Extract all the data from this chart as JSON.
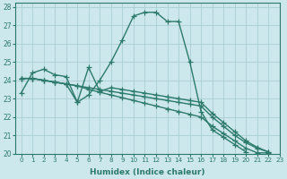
{
  "xlabel": "Humidex (Indice chaleur)",
  "xlim": [
    -0.5,
    23
  ],
  "ylim": [
    20,
    28.2
  ],
  "yticks": [
    20,
    21,
    22,
    23,
    24,
    25,
    26,
    27,
    28
  ],
  "xticks": [
    0,
    1,
    2,
    3,
    4,
    5,
    6,
    7,
    8,
    9,
    10,
    11,
    12,
    13,
    14,
    15,
    16,
    17,
    18,
    19,
    20,
    21,
    22,
    23
  ],
  "bg_color": "#cce8ec",
  "grid_color": "#aacdd4",
  "line_color": "#2d7a6c",
  "curve_main": {
    "x": [
      0,
      1,
      2,
      3,
      4,
      5,
      6,
      7,
      8,
      9,
      10,
      11,
      12,
      13,
      14,
      15,
      16,
      17,
      18,
      19,
      20,
      21,
      22,
      23
    ],
    "y": [
      23.3,
      24.4,
      24.6,
      24.3,
      24.2,
      22.8,
      23.2,
      24.0,
      25.0,
      26.2,
      27.5,
      27.7,
      27.7,
      27.2,
      27.2,
      25.0,
      22.3,
      21.3,
      20.9,
      20.5,
      20.1,
      null,
      null,
      null
    ]
  },
  "curve_line1": {
    "x": [
      0,
      1,
      2,
      3,
      4,
      5,
      6,
      7,
      8,
      9,
      10,
      11,
      12,
      13,
      14,
      15,
      16,
      17,
      18,
      19,
      20,
      21,
      22,
      23
    ],
    "y": [
      24.1,
      24.1,
      24.0,
      23.9,
      23.8,
      23.7,
      23.6,
      23.5,
      23.4,
      23.3,
      23.2,
      23.1,
      23.0,
      22.9,
      22.8,
      22.7,
      22.6,
      22.0,
      21.5,
      21.0,
      20.6,
      20.3,
      20.1,
      null
    ]
  },
  "curve_line2": {
    "x": [
      0,
      1,
      2,
      3,
      4,
      5,
      6,
      7,
      8,
      9,
      10,
      11,
      12,
      13,
      14,
      15,
      16,
      17,
      18,
      19,
      20,
      21,
      22,
      23
    ],
    "y": [
      24.1,
      24.1,
      24.0,
      23.9,
      23.8,
      23.7,
      23.5,
      23.35,
      23.2,
      23.05,
      22.9,
      22.75,
      22.6,
      22.45,
      22.3,
      22.15,
      22.0,
      21.5,
      21.1,
      20.7,
      20.3,
      20.05,
      20.05,
      null
    ]
  },
  "curve_spike": {
    "x": [
      0,
      1,
      2,
      3,
      4,
      5,
      6,
      7,
      8,
      9,
      10,
      11,
      12,
      13,
      14,
      15,
      16,
      17,
      18,
      19,
      20,
      21,
      22,
      23
    ],
    "y": [
      24.1,
      24.1,
      24.0,
      23.9,
      23.8,
      22.8,
      24.7,
      23.4,
      23.6,
      23.5,
      23.4,
      23.3,
      23.2,
      23.1,
      23.0,
      22.9,
      22.8,
      22.2,
      21.7,
      21.2,
      20.7,
      20.35,
      20.1,
      null
    ]
  },
  "marker": "+",
  "markersize": 4,
  "linewidth": 1.0
}
